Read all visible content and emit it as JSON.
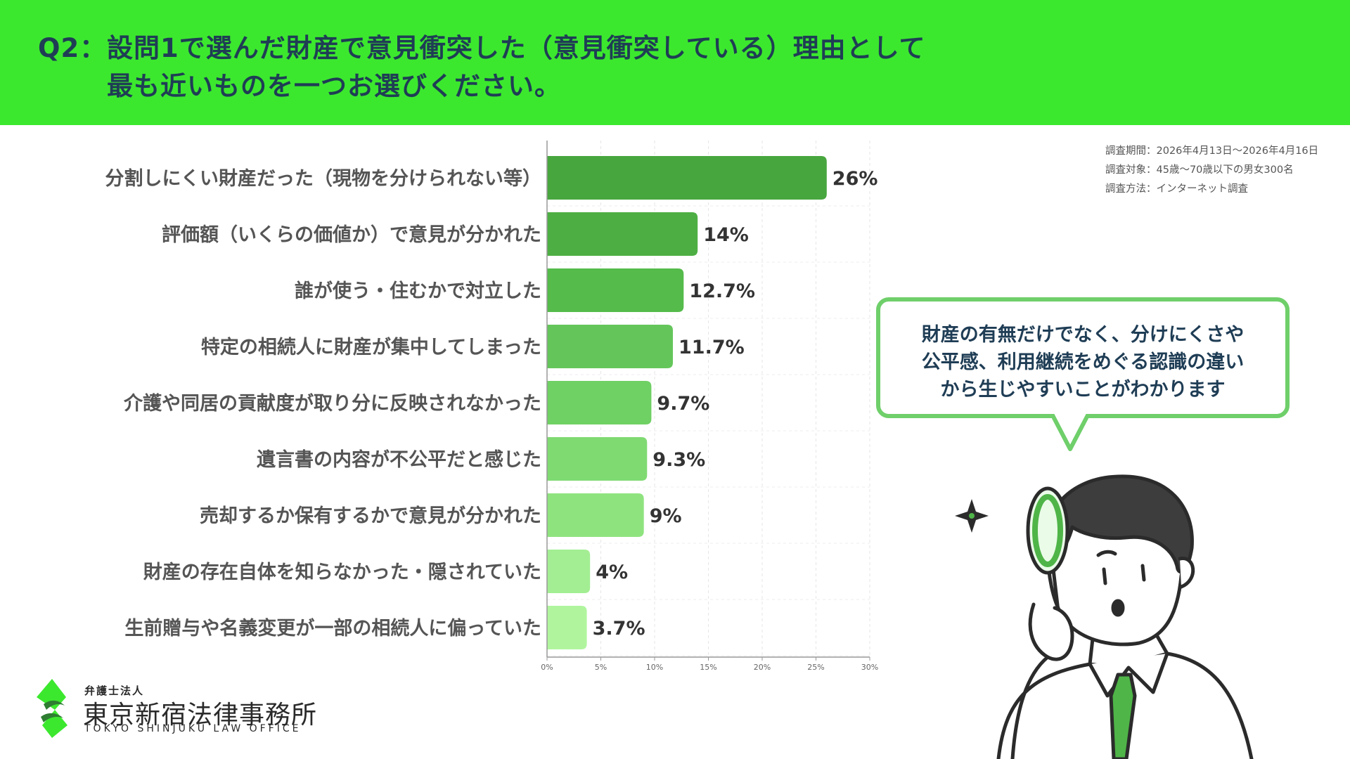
{
  "header": {
    "prefix": "Q2：",
    "line1": "設問1で選んだ財産で意見衝突した（意見衝突している）理由として",
    "line2": "最も近いものを一つお選びください。"
  },
  "survey": {
    "period": "調査期間：2026年4月13日〜2026年4月16日",
    "target": "調査対象：45歳〜70歳以下の男女300名",
    "method": "調査方法：インターネット調査"
  },
  "bubble": {
    "lines": [
      "財産の有無だけでなく、分けにくさや",
      "公平感、利用継続をめぐる認識の違い",
      "から生じやすいことがわかります"
    ]
  },
  "logo": {
    "sub": "弁護士法人",
    "name": "東京新宿法律事務所",
    "en": "TOKYO SHINJUKU LAW OFFICE"
  },
  "colors": {
    "header_bg": "#3ce82e",
    "bar_gradient": [
      "#48a63f",
      "#4daf43",
      "#55bb4b",
      "#64c65a",
      "#6fd064",
      "#7fda72",
      "#8fe37f",
      "#a3ee93",
      "#b0f59e"
    ],
    "bubble_border": "#6fcf6a"
  },
  "chart_data": {
    "type": "bar",
    "orientation": "horizontal",
    "categories": [
      "分割しにくい財産だった（現物を分けられない等）",
      "評価額（いくらの価値か）で意見が分かれた",
      "誰が使う・住むかで対立した",
      "特定の相続人に財産が集中してしまった",
      "介護や同居の貢献度が取り分に反映されなかった",
      "遺言書の内容が不公平だと感じた",
      "売却するか保有するかで意見が分かれた",
      "財産の存在自体を知らなかった・隠されていた",
      "生前贈与や名義変更が一部の相続人に偏っていた"
    ],
    "values": [
      26,
      14,
      12.7,
      11.7,
      9.7,
      9.3,
      9,
      4,
      3.7
    ],
    "value_labels": [
      "26%",
      "14%",
      "12.7%",
      "11.7%",
      "9.7%",
      "9.3%",
      "9%",
      "4%",
      "3.7%"
    ],
    "xlim": [
      0,
      30
    ],
    "x_ticks": [
      0,
      5,
      10,
      15,
      20,
      25,
      30
    ],
    "x_tick_labels": [
      "0%",
      "5%",
      "10%",
      "15%",
      "20%",
      "25%",
      "30%"
    ],
    "grid": true,
    "legend": "none"
  }
}
